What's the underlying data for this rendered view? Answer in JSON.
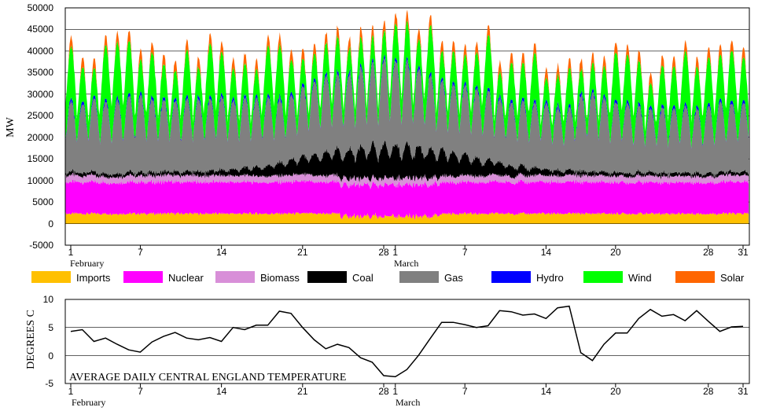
{
  "chart_data": [
    {
      "type": "area",
      "stacked": true,
      "xlabel": "",
      "ylabel": "MW",
      "ylim": [
        -5000,
        50000
      ],
      "yticks": [
        "50000",
        "45000",
        "40000",
        "35000",
        "30000",
        "25000",
        "20000",
        "15000",
        "10000",
        "5000",
        "0",
        "-5000"
      ],
      "grid": true,
      "month_labels": [
        "February",
        "March"
      ],
      "xticks": [
        {
          "day": 1,
          "label": "1"
        },
        {
          "day": 7,
          "label": "7"
        },
        {
          "day": 14,
          "label": "14"
        },
        {
          "day": 21,
          "label": "21"
        },
        {
          "day": 28,
          "label": "28"
        },
        {
          "day": 29,
          "label": "1"
        },
        {
          "day": 35,
          "label": "7"
        },
        {
          "day": 42,
          "label": "14"
        },
        {
          "day": 48,
          "label": "20"
        },
        {
          "day": 56,
          "label": "28"
        },
        {
          "day": 59,
          "label": "31"
        }
      ],
      "series": [
        {
          "name": "Imports",
          "color": "#FFC000",
          "daily_mean_mw": 2200
        },
        {
          "name": "Nuclear",
          "color": "#FF00FF",
          "daily_mean_mw": 7500
        },
        {
          "name": "Biomass",
          "color": "#D88FD8",
          "daily_mean_mw": 1500
        },
        {
          "name": "Coal",
          "color": "#000000",
          "daily_mean_mw": 3500
        },
        {
          "name": "Gas",
          "color": "#808080",
          "daily_mean_mw": 13000
        },
        {
          "name": "Hydro",
          "color": "#0000FF",
          "daily_mean_mw": 600
        },
        {
          "name": "Wind",
          "color": "#00FF00",
          "daily_mean_mw": 7000
        },
        {
          "name": "Solar",
          "color": "#FF6600",
          "daily_mean_mw": 1500
        }
      ]
    },
    {
      "type": "line",
      "xlabel": "",
      "ylabel": "DEGREES C",
      "annotation": "AVERAGE DAILY CENTRAL ENGLAND TEMPERATURE",
      "ylim": [
        -5,
        10
      ],
      "yticks": [
        "10",
        "5",
        "0",
        "-5"
      ],
      "grid": true,
      "month_labels": [
        "February",
        "March"
      ],
      "xticks": [
        {
          "day": 1,
          "label": "1"
        },
        {
          "day": 7,
          "label": "7"
        },
        {
          "day": 14,
          "label": "14"
        },
        {
          "day": 21,
          "label": "21"
        },
        {
          "day": 28,
          "label": "28"
        },
        {
          "day": 29,
          "label": "1"
        },
        {
          "day": 35,
          "label": "7"
        },
        {
          "day": 42,
          "label": "14"
        },
        {
          "day": 48,
          "label": "20"
        },
        {
          "day": 56,
          "label": "28"
        },
        {
          "day": 59,
          "label": "31"
        }
      ],
      "series": [
        {
          "color": "#000000",
          "x": [
            1,
            2,
            3,
            4,
            5,
            6,
            7,
            8,
            9,
            10,
            11,
            12,
            13,
            14,
            15,
            16,
            17,
            18,
            19,
            20,
            21,
            22,
            23,
            24,
            25,
            26,
            27,
            28,
            29,
            30,
            31,
            32,
            33,
            34,
            35,
            36,
            37,
            38,
            39,
            40,
            41,
            42,
            43,
            44,
            45,
            46,
            47,
            48,
            49,
            50,
            51,
            52,
            53,
            54,
            55,
            56,
            57,
            58,
            59
          ],
          "values": [
            4.3,
            4.6,
            2.5,
            3.1,
            2.0,
            1.0,
            0.6,
            2.4,
            3.4,
            4.1,
            3.1,
            2.8,
            3.2,
            2.5,
            5.0,
            4.6,
            5.4,
            5.4,
            7.9,
            7.5,
            5.0,
            2.8,
            1.2,
            2.0,
            1.4,
            -0.4,
            -1.2,
            -3.6,
            -3.8,
            -2.5,
            0.0,
            3.0,
            5.9,
            5.9,
            5.5,
            5.0,
            5.3,
            8.0,
            7.8,
            7.2,
            7.4,
            6.6,
            8.5,
            8.8,
            0.5,
            -0.9,
            2.0,
            4.0,
            4.0,
            6.6,
            8.2,
            7.0,
            7.3,
            6.2,
            8.0,
            6.1,
            4.3,
            5.1,
            5.2
          ]
        }
      ]
    }
  ]
}
